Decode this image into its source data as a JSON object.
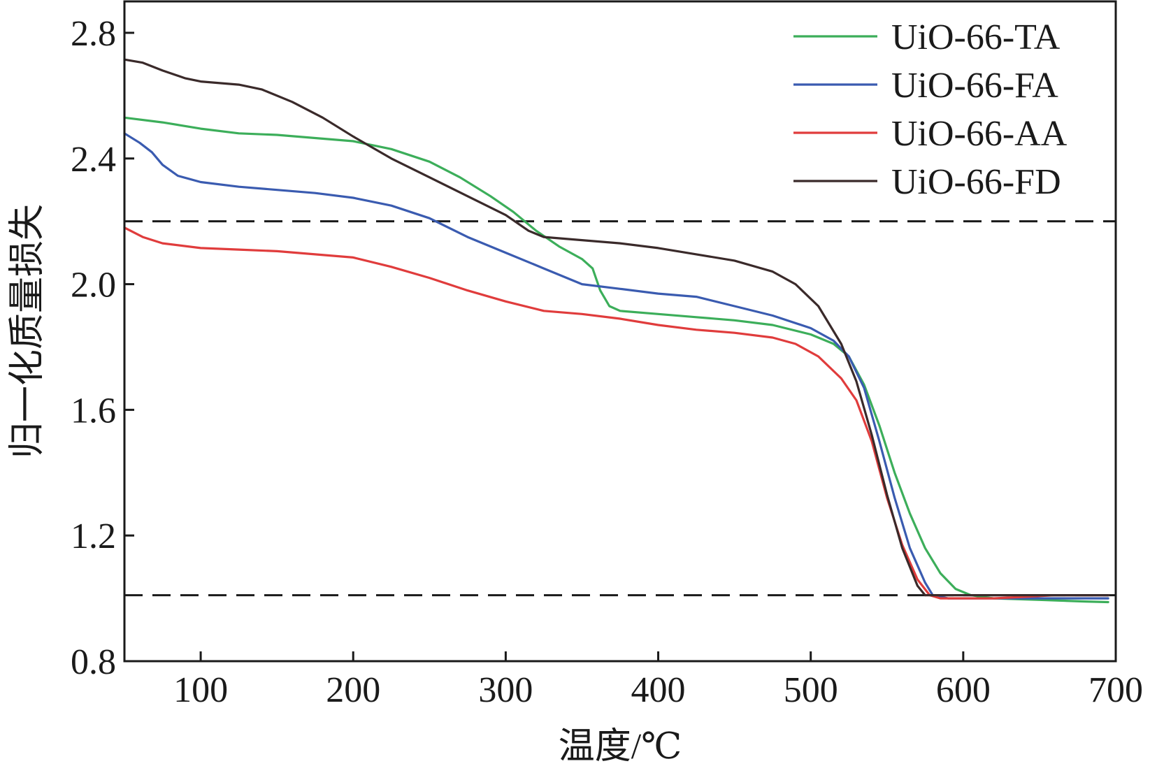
{
  "chart_data": {
    "type": "line",
    "title": "",
    "xlabel": "温度/℃",
    "ylabel": "归一化质量损失",
    "xlim": [
      50,
      700
    ],
    "ylim": [
      0.8,
      2.9
    ],
    "x_ticks": [
      100,
      200,
      300,
      400,
      500,
      600,
      700
    ],
    "x_tick_labels": [
      "100",
      "200",
      "300",
      "400",
      "500",
      "600",
      "700"
    ],
    "y_ticks": [
      0.8,
      1.2,
      1.6,
      2.0,
      2.4,
      2.8
    ],
    "y_tick_labels": [
      "0.8",
      "1.2",
      "1.6",
      "2.0",
      "2.4",
      "2.8"
    ],
    "grid": false,
    "legend_position": "top-right",
    "reference_lines": [
      {
        "orientation": "horizontal",
        "y": 2.2,
        "style": "dashed"
      },
      {
        "orientation": "horizontal",
        "y": 1.01,
        "style": "dashed"
      }
    ],
    "series": [
      {
        "name": "UiO-66-TA",
        "color": "#3cae5a",
        "points": [
          [
            50,
            2.53
          ],
          [
            75,
            2.515
          ],
          [
            100,
            2.495
          ],
          [
            125,
            2.48
          ],
          [
            150,
            2.475
          ],
          [
            175,
            2.465
          ],
          [
            200,
            2.455
          ],
          [
            225,
            2.43
          ],
          [
            250,
            2.39
          ],
          [
            270,
            2.34
          ],
          [
            290,
            2.28
          ],
          [
            305,
            2.23
          ],
          [
            320,
            2.17
          ],
          [
            335,
            2.12
          ],
          [
            350,
            2.08
          ],
          [
            357,
            2.05
          ],
          [
            362,
            1.98
          ],
          [
            368,
            1.93
          ],
          [
            375,
            1.915
          ],
          [
            400,
            1.905
          ],
          [
            425,
            1.895
          ],
          [
            450,
            1.885
          ],
          [
            475,
            1.87
          ],
          [
            500,
            1.84
          ],
          [
            515,
            1.81
          ],
          [
            525,
            1.77
          ],
          [
            535,
            1.68
          ],
          [
            545,
            1.55
          ],
          [
            555,
            1.4
          ],
          [
            565,
            1.27
          ],
          [
            575,
            1.16
          ],
          [
            585,
            1.08
          ],
          [
            595,
            1.03
          ],
          [
            605,
            1.01
          ],
          [
            620,
            1.0
          ],
          [
            650,
            0.995
          ],
          [
            680,
            0.99
          ],
          [
            695,
            0.988
          ]
        ]
      },
      {
        "name": "UiO-66-FA",
        "color": "#3a5bb0",
        "points": [
          [
            50,
            2.48
          ],
          [
            60,
            2.45
          ],
          [
            68,
            2.42
          ],
          [
            75,
            2.38
          ],
          [
            85,
            2.345
          ],
          [
            100,
            2.325
          ],
          [
            125,
            2.31
          ],
          [
            150,
            2.3
          ],
          [
            175,
            2.29
          ],
          [
            200,
            2.275
          ],
          [
            225,
            2.25
          ],
          [
            250,
            2.21
          ],
          [
            275,
            2.15
          ],
          [
            300,
            2.1
          ],
          [
            325,
            2.05
          ],
          [
            350,
            2.0
          ],
          [
            375,
            1.985
          ],
          [
            400,
            1.97
          ],
          [
            425,
            1.96
          ],
          [
            450,
            1.93
          ],
          [
            475,
            1.9
          ],
          [
            500,
            1.86
          ],
          [
            515,
            1.82
          ],
          [
            525,
            1.77
          ],
          [
            535,
            1.67
          ],
          [
            545,
            1.5
          ],
          [
            555,
            1.32
          ],
          [
            565,
            1.16
          ],
          [
            575,
            1.05
          ],
          [
            580,
            1.01
          ],
          [
            590,
            1.0
          ],
          [
            620,
            1.0
          ],
          [
            660,
            1.0
          ],
          [
            695,
            1.0
          ]
        ]
      },
      {
        "name": "UiO-66-AA",
        "color": "#e03c3c",
        "points": [
          [
            50,
            2.18
          ],
          [
            62,
            2.15
          ],
          [
            75,
            2.13
          ],
          [
            100,
            2.115
          ],
          [
            125,
            2.11
          ],
          [
            150,
            2.105
          ],
          [
            175,
            2.095
          ],
          [
            200,
            2.085
          ],
          [
            225,
            2.055
          ],
          [
            250,
            2.02
          ],
          [
            275,
            1.98
          ],
          [
            300,
            1.945
          ],
          [
            325,
            1.915
          ],
          [
            350,
            1.905
          ],
          [
            375,
            1.89
          ],
          [
            400,
            1.87
          ],
          [
            425,
            1.855
          ],
          [
            450,
            1.845
          ],
          [
            475,
            1.83
          ],
          [
            490,
            1.81
          ],
          [
            505,
            1.77
          ],
          [
            520,
            1.7
          ],
          [
            530,
            1.63
          ],
          [
            540,
            1.5
          ],
          [
            550,
            1.32
          ],
          [
            560,
            1.17
          ],
          [
            570,
            1.06
          ],
          [
            578,
            1.01
          ],
          [
            585,
            1.0
          ],
          [
            620,
            1.0
          ],
          [
            660,
            1.01
          ],
          [
            695,
            1.01
          ]
        ]
      },
      {
        "name": "UiO-66-FD",
        "color": "#3a2a2a",
        "points": [
          [
            50,
            2.715
          ],
          [
            62,
            2.705
          ],
          [
            75,
            2.68
          ],
          [
            90,
            2.655
          ],
          [
            100,
            2.645
          ],
          [
            125,
            2.635
          ],
          [
            140,
            2.62
          ],
          [
            160,
            2.58
          ],
          [
            180,
            2.53
          ],
          [
            200,
            2.47
          ],
          [
            225,
            2.4
          ],
          [
            250,
            2.34
          ],
          [
            275,
            2.28
          ],
          [
            300,
            2.22
          ],
          [
            315,
            2.17
          ],
          [
            325,
            2.15
          ],
          [
            350,
            2.14
          ],
          [
            375,
            2.13
          ],
          [
            400,
            2.115
          ],
          [
            425,
            2.095
          ],
          [
            450,
            2.075
          ],
          [
            475,
            2.04
          ],
          [
            490,
            2.0
          ],
          [
            505,
            1.93
          ],
          [
            520,
            1.81
          ],
          [
            530,
            1.69
          ],
          [
            540,
            1.52
          ],
          [
            550,
            1.33
          ],
          [
            560,
            1.16
          ],
          [
            570,
            1.04
          ],
          [
            575,
            1.01
          ],
          [
            585,
            1.01
          ],
          [
            620,
            1.01
          ],
          [
            660,
            1.01
          ],
          [
            695,
            1.01
          ]
        ]
      }
    ]
  }
}
